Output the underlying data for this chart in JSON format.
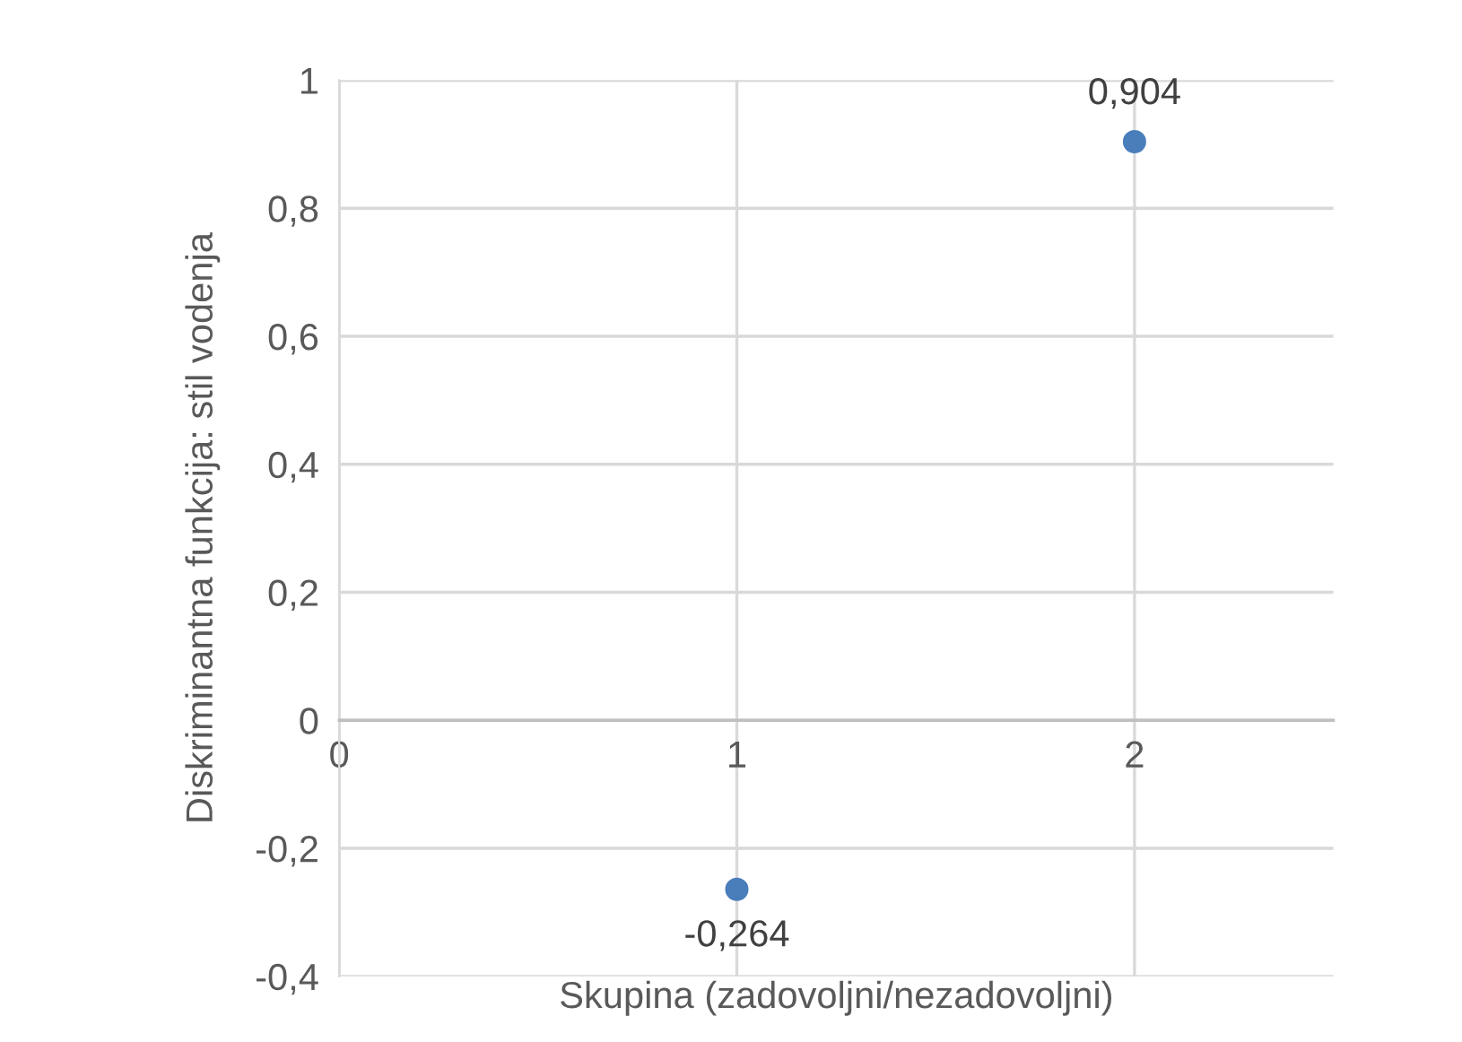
{
  "chart_data": {
    "type": "scatter",
    "xlabel": "Skupina (zadovoljni/nezadovoljni)",
    "ylabel": "Diskriminantna funkcija: stil vodenja",
    "x": [
      1,
      2
    ],
    "series": [
      {
        "color": "#4a7ebb",
        "values": [
          -0.264,
          0.904
        ],
        "value_labels": [
          "-0,264",
          "0,904"
        ]
      }
    ],
    "xlim": [
      0,
      2.5
    ],
    "xticks": [
      0,
      1,
      2
    ],
    "ylim": [
      -0.4,
      1
    ],
    "yticks": [
      {
        "value": -0.4,
        "label": "-0,4"
      },
      {
        "value": -0.2,
        "label": "-0,2"
      },
      0,
      {
        "value": 0.2,
        "label": "0,2"
      },
      {
        "value": 0.4,
        "label": "0,4"
      },
      {
        "value": 0.6,
        "label": "0,6"
      },
      {
        "value": 0.8,
        "label": "0,8"
      },
      1
    ],
    "grid": true,
    "marker": "circle",
    "legend": false
  }
}
